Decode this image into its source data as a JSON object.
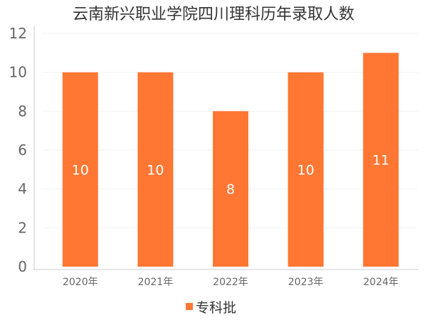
{
  "chart_data": {
    "type": "bar",
    "title": "云南新兴职业学院四川理科历年录取人数",
    "xlabel": "",
    "ylabel": "",
    "categories": [
      "2020年",
      "2021年",
      "2022年",
      "2023年",
      "2024年"
    ],
    "series": [
      {
        "name": "专科批",
        "values": [
          10,
          10,
          8,
          10,
          11
        ],
        "color": "#FF7733"
      }
    ],
    "ylim": [
      0,
      12
    ],
    "yticks": [
      0,
      2,
      4,
      6,
      8,
      10,
      12
    ],
    "grid": true,
    "legend_position": "bottom-center"
  }
}
